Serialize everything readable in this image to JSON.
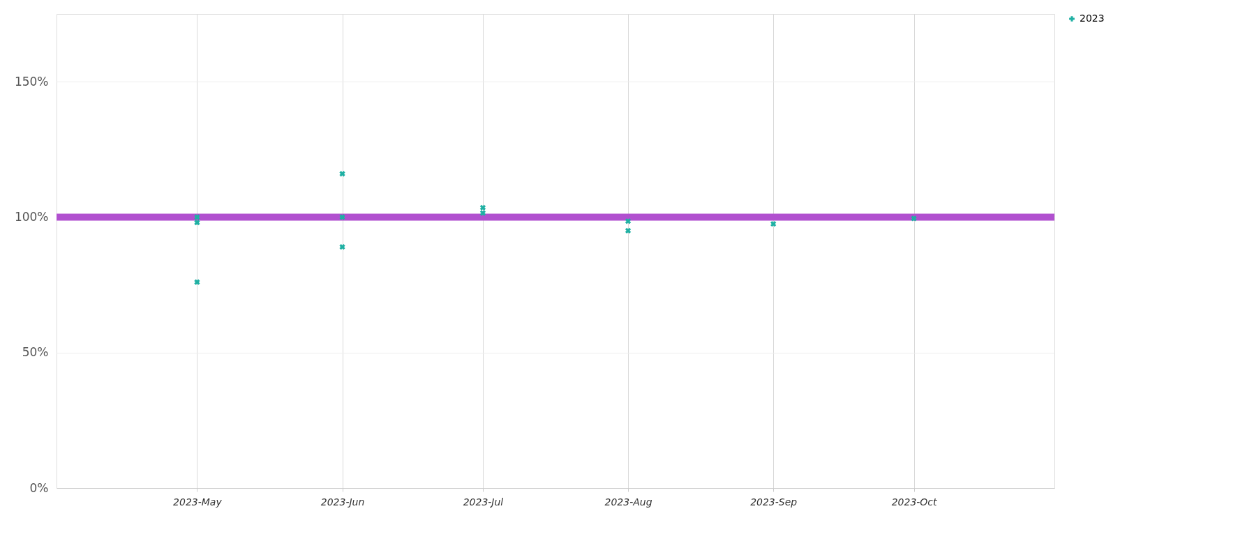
{
  "chart_data": {
    "type": "scatter",
    "series": [
      {
        "name": "2023",
        "color": "#1fb0a3",
        "x": [
          "2023-05-01",
          "2023-05-01",
          "2023-05-01",
          "2023-06-01",
          "2023-06-01",
          "2023-06-01",
          "2023-07-01",
          "2023-07-01",
          "2023-08-01",
          "2023-08-01",
          "2023-09-01",
          "2023-10-01"
        ],
        "values": [
          100,
          98,
          76,
          116,
          100,
          89,
          103.5,
          101.5,
          98.5,
          95,
          97.5,
          99.5
        ]
      }
    ],
    "xlim": [
      "2023-04-01",
      "2023-10-31"
    ],
    "xticks": [
      {
        "value": "2023-05-01",
        "label": "2023-May"
      },
      {
        "value": "2023-06-01",
        "label": "2023-Jun"
      },
      {
        "value": "2023-07-01",
        "label": "2023-Jul"
      },
      {
        "value": "2023-08-01",
        "label": "2023-Aug"
      },
      {
        "value": "2023-09-01",
        "label": "2023-Sep"
      },
      {
        "value": "2023-10-01",
        "label": "2023-Oct"
      }
    ],
    "ylim": [
      0,
      175
    ],
    "yticks": [
      {
        "value": 0,
        "label": "0%"
      },
      {
        "value": 50,
        "label": "50%"
      },
      {
        "value": 100,
        "label": "100%"
      },
      {
        "value": 150,
        "label": "150%"
      }
    ],
    "ref_lines": [
      {
        "axis": "y",
        "value": 100,
        "color": "#b150cf"
      }
    ],
    "grid": true,
    "legend": "top right",
    "marker": "cross"
  }
}
